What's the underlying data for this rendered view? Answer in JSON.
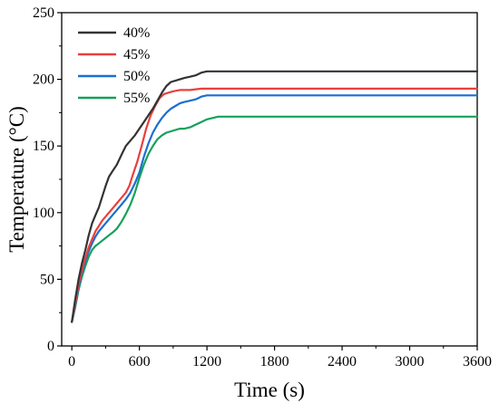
{
  "chart_data": {
    "type": "line",
    "title": "",
    "xlabel": "Time (s)",
    "ylabel": "Temperature (°C)",
    "xlim": [
      -90,
      3600
    ],
    "ylim": [
      0,
      250
    ],
    "xticks": [
      0,
      600,
      1200,
      1800,
      2400,
      3000,
      3600
    ],
    "yticks": [
      0,
      50,
      100,
      150,
      200,
      250
    ],
    "grid": false,
    "legend_position": "top-left",
    "series": [
      {
        "name": "40%",
        "color": "#333333",
        "points": [
          [
            0,
            18
          ],
          [
            30,
            35
          ],
          [
            60,
            50
          ],
          [
            90,
            62
          ],
          [
            120,
            72
          ],
          [
            150,
            83
          ],
          [
            180,
            92
          ],
          [
            210,
            98
          ],
          [
            240,
            104
          ],
          [
            270,
            112
          ],
          [
            300,
            120
          ],
          [
            330,
            127
          ],
          [
            360,
            131
          ],
          [
            400,
            136
          ],
          [
            450,
            145
          ],
          [
            480,
            150
          ],
          [
            520,
            154
          ],
          [
            560,
            158
          ],
          [
            600,
            163
          ],
          [
            640,
            168
          ],
          [
            680,
            173
          ],
          [
            720,
            178
          ],
          [
            760,
            184
          ],
          [
            800,
            190
          ],
          [
            840,
            195
          ],
          [
            880,
            198
          ],
          [
            920,
            199
          ],
          [
            960,
            200
          ],
          [
            1000,
            201
          ],
          [
            1050,
            202
          ],
          [
            1100,
            203
          ],
          [
            1150,
            205
          ],
          [
            1200,
            206
          ],
          [
            1300,
            206
          ],
          [
            1500,
            206
          ],
          [
            2000,
            206
          ],
          [
            2500,
            206
          ],
          [
            3000,
            206
          ],
          [
            3600,
            206
          ]
        ]
      },
      {
        "name": "45%",
        "color": "#e8403d",
        "points": [
          [
            0,
            18
          ],
          [
            30,
            32
          ],
          [
            60,
            46
          ],
          [
            90,
            57
          ],
          [
            120,
            66
          ],
          [
            150,
            74
          ],
          [
            180,
            80
          ],
          [
            210,
            86
          ],
          [
            240,
            90
          ],
          [
            270,
            94
          ],
          [
            300,
            97
          ],
          [
            330,
            100
          ],
          [
            360,
            103
          ],
          [
            400,
            107
          ],
          [
            450,
            112
          ],
          [
            480,
            115
          ],
          [
            510,
            120
          ],
          [
            540,
            128
          ],
          [
            580,
            138
          ],
          [
            620,
            150
          ],
          [
            660,
            163
          ],
          [
            700,
            173
          ],
          [
            740,
            180
          ],
          [
            780,
            186
          ],
          [
            820,
            189
          ],
          [
            860,
            190
          ],
          [
            900,
            191
          ],
          [
            960,
            192
          ],
          [
            1050,
            192
          ],
          [
            1150,
            193
          ],
          [
            1300,
            193
          ],
          [
            1500,
            193
          ],
          [
            2000,
            193
          ],
          [
            2500,
            193
          ],
          [
            3000,
            193
          ],
          [
            3600,
            193
          ]
        ]
      },
      {
        "name": "50%",
        "color": "#1a6fd0",
        "points": [
          [
            0,
            18
          ],
          [
            30,
            30
          ],
          [
            60,
            44
          ],
          [
            90,
            55
          ],
          [
            120,
            64
          ],
          [
            150,
            71
          ],
          [
            180,
            77
          ],
          [
            210,
            82
          ],
          [
            240,
            86
          ],
          [
            270,
            89
          ],
          [
            300,
            92
          ],
          [
            330,
            95
          ],
          [
            360,
            98
          ],
          [
            400,
            102
          ],
          [
            440,
            106
          ],
          [
            480,
            110
          ],
          [
            520,
            115
          ],
          [
            560,
            122
          ],
          [
            600,
            130
          ],
          [
            640,
            142
          ],
          [
            680,
            152
          ],
          [
            720,
            160
          ],
          [
            760,
            166
          ],
          [
            800,
            171
          ],
          [
            840,
            175
          ],
          [
            880,
            178
          ],
          [
            920,
            180
          ],
          [
            960,
            182
          ],
          [
            1000,
            183
          ],
          [
            1050,
            184
          ],
          [
            1100,
            185
          ],
          [
            1150,
            187
          ],
          [
            1200,
            188
          ],
          [
            1300,
            188
          ],
          [
            1500,
            188
          ],
          [
            2000,
            188
          ],
          [
            2500,
            188
          ],
          [
            3000,
            188
          ],
          [
            3600,
            188
          ]
        ]
      },
      {
        "name": "55%",
        "color": "#14a15a",
        "points": [
          [
            0,
            18
          ],
          [
            30,
            29
          ],
          [
            60,
            42
          ],
          [
            90,
            52
          ],
          [
            120,
            60
          ],
          [
            150,
            67
          ],
          [
            180,
            72
          ],
          [
            210,
            75
          ],
          [
            240,
            77
          ],
          [
            270,
            79
          ],
          [
            300,
            81
          ],
          [
            330,
            83
          ],
          [
            360,
            85
          ],
          [
            400,
            88
          ],
          [
            440,
            93
          ],
          [
            480,
            99
          ],
          [
            520,
            106
          ],
          [
            560,
            115
          ],
          [
            600,
            126
          ],
          [
            640,
            136
          ],
          [
            680,
            144
          ],
          [
            720,
            150
          ],
          [
            760,
            155
          ],
          [
            800,
            158
          ],
          [
            840,
            160
          ],
          [
            880,
            161
          ],
          [
            920,
            162
          ],
          [
            960,
            163
          ],
          [
            1000,
            163
          ],
          [
            1050,
            164
          ],
          [
            1100,
            166
          ],
          [
            1150,
            168
          ],
          [
            1200,
            170
          ],
          [
            1250,
            171
          ],
          [
            1300,
            172
          ],
          [
            1400,
            172
          ],
          [
            1600,
            172
          ],
          [
            2000,
            172
          ],
          [
            2500,
            172
          ],
          [
            3000,
            172
          ],
          [
            3600,
            172
          ]
        ]
      }
    ]
  }
}
